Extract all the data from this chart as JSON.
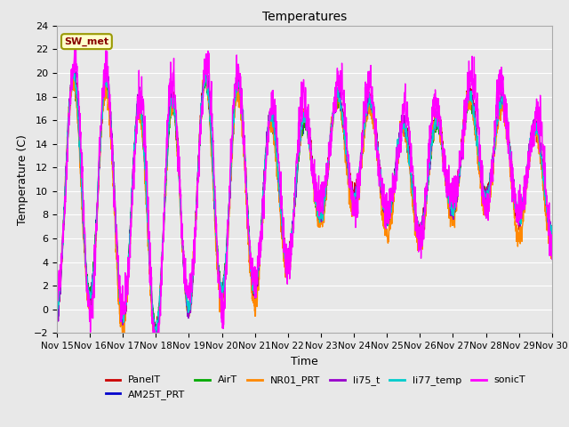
{
  "title": "Temperatures",
  "xlabel": "Time",
  "ylabel": "Temperature (C)",
  "ylim": [
    -2,
    24
  ],
  "xlim": [
    0,
    15
  ],
  "x_tick_labels": [
    "Nov 15",
    "Nov 16",
    "Nov 17",
    "Nov 18",
    "Nov 19",
    "Nov 20",
    "Nov 21",
    "Nov 22",
    "Nov 23",
    "Nov 24",
    "Nov 25",
    "Nov 26",
    "Nov 27",
    "Nov 28",
    "Nov 29",
    "Nov 30"
  ],
  "series": {
    "PanelT": {
      "color": "#cc0000",
      "lw": 1.0
    },
    "AM25T_PRT": {
      "color": "#0000cc",
      "lw": 1.0
    },
    "AirT": {
      "color": "#00aa00",
      "lw": 1.0
    },
    "NR01_PRT": {
      "color": "#ff8800",
      "lw": 1.0
    },
    "li75_t": {
      "color": "#9900cc",
      "lw": 1.0
    },
    "li77_temp": {
      "color": "#00cccc",
      "lw": 1.0
    },
    "sonicT": {
      "color": "#ff00ff",
      "lw": 1.0
    }
  },
  "annotation_text": "SW_met",
  "annotation_color": "#880000",
  "annotation_bg": "#ffffcc",
  "annotation_border": "#999900",
  "plot_bg": "#e8e8e8",
  "fig_bg": "#e8e8e8",
  "grid_color": "#ffffff",
  "seed": 12345,
  "n_points": 2160,
  "days": 15,
  "figwidth": 6.4,
  "figheight": 4.8,
  "dpi": 100
}
